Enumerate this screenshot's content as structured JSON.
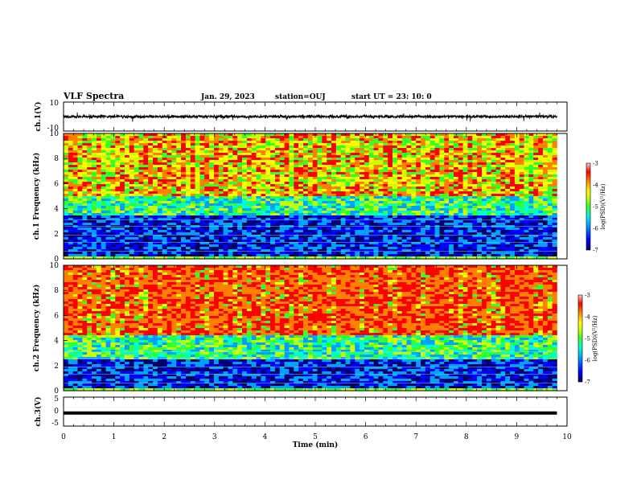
{
  "header": {
    "title": "VLF Spectra",
    "date": "Jan. 29, 2023",
    "station": "station=OUJ",
    "start": "start UT = 23: 10: 0"
  },
  "colors": {
    "ramp": [
      "#00006a",
      "#0000ff",
      "#00a0ff",
      "#00ffd0",
      "#30ff30",
      "#c8ff00",
      "#ffff00",
      "#ff8000",
      "#ff0000",
      "#ffd0d0"
    ],
    "waveform": "#000000",
    "axis": "#000000"
  },
  "chart_data": [
    {
      "type": "line",
      "panel": "ch1-waveform",
      "ylabel": "ch.1(V)",
      "ylim": [
        -10,
        10
      ],
      "yticks": [
        "10",
        "-10"
      ],
      "xlim": [
        0,
        10
      ],
      "description_values": {
        "typical_amplitude_V": 1.5,
        "max_spike_V": 4
      }
    },
    {
      "type": "heatmap",
      "panel": "ch1-spectrogram",
      "ylabel": "ch.1 Frequency (kHz)",
      "ylim": [
        0,
        10
      ],
      "yticks": [
        "0",
        "2",
        "4",
        "6",
        "8",
        "10"
      ],
      "xlim": [
        0,
        10
      ],
      "colorbar": {
        "label": "log(PSD)(V²/Hz)",
        "range": [
          -7,
          -3
        ],
        "ticks": [
          "-3",
          "-4",
          "-5",
          "-6",
          "-7"
        ]
      },
      "bands_kHz": {
        "dark_blue_low": [
          0.3,
          3.5
        ],
        "mixed": [
          3.5,
          5.0
        ],
        "hot_upper": [
          5.0,
          10.0
        ]
      },
      "hot_fraction": 0.45
    },
    {
      "type": "heatmap",
      "panel": "ch2-spectrogram",
      "ylabel": "ch.2 Frequency (kHz)",
      "ylim": [
        0,
        10
      ],
      "yticks": [
        "0",
        "2",
        "4",
        "6",
        "8",
        "10"
      ],
      "xlim": [
        0,
        10
      ],
      "colorbar": {
        "label": "log(PSD)(V²/Hz)",
        "range": [
          -7,
          -3
        ],
        "ticks": [
          "-3",
          "-4",
          "-5",
          "-6",
          "-7"
        ]
      },
      "bands_kHz": {
        "dark_blue_low": [
          0.3,
          2.5
        ],
        "mixed": [
          2.5,
          4.5
        ],
        "hot_upper": [
          4.5,
          10.0
        ]
      },
      "hot_fraction": 0.75
    },
    {
      "type": "line",
      "panel": "ch3-waveform",
      "ylabel": "ch.3(V)",
      "ylim": [
        -5,
        5
      ],
      "yticks": [
        "5",
        "0",
        "-5"
      ],
      "xlim": [
        0,
        10
      ],
      "x": [
        0,
        9.8
      ],
      "y": [
        -0.5,
        -0.5
      ]
    }
  ],
  "xaxis": {
    "label": "Time (min)",
    "ticks": [
      "0",
      "1",
      "2",
      "3",
      "4",
      "5",
      "6",
      "7",
      "8",
      "9",
      "10"
    ]
  }
}
